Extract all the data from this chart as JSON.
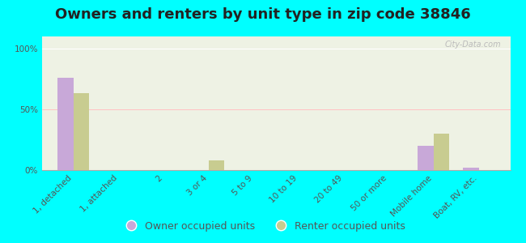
{
  "title": "Owners and renters by unit type in zip code 38846",
  "categories": [
    "1, detached",
    "1, attached",
    "2",
    "3 or 4",
    "5 to 9",
    "10 to 19",
    "20 to 49",
    "50 or more",
    "Mobile home",
    "Boat, RV, etc."
  ],
  "owner_values": [
    76,
    0,
    0,
    0,
    0,
    0,
    0,
    0,
    20,
    2
  ],
  "renter_values": [
    63,
    0,
    0,
    8,
    0,
    0,
    0,
    0,
    30,
    0
  ],
  "owner_color": "#c8a8d8",
  "renter_color": "#c8cc90",
  "background_color": "#00ffff",
  "plot_bg_color": "#eef2e4",
  "yticks": [
    0,
    50,
    100
  ],
  "ytick_labels": [
    "0%",
    "50%",
    "100%"
  ],
  "ylim": [
    0,
    110
  ],
  "bar_width": 0.35,
  "legend_labels": [
    "Owner occupied units",
    "Renter occupied units"
  ],
  "title_fontsize": 13,
  "tick_fontsize": 7.5,
  "legend_fontsize": 9,
  "watermark": "City-Data.com"
}
